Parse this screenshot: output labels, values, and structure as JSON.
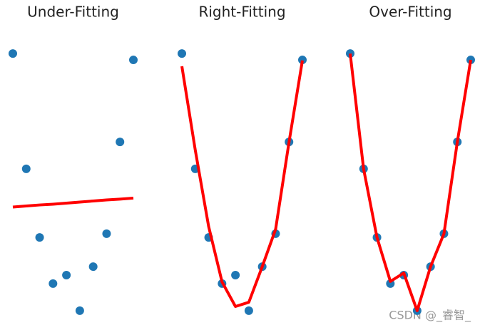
{
  "chart_data": [
    {
      "type": "scatter",
      "title": "Under-Fitting",
      "x": [
        0,
        1,
        2,
        3,
        4,
        5,
        6,
        7,
        8,
        9
      ],
      "values": [
        9.86,
        5.49,
        2.89,
        1.14,
        1.46,
        0.11,
        1.78,
        3.03,
        6.51,
        9.62
      ],
      "color": "#1f77b4",
      "fit": {
        "values": [
          4.04,
          4.08,
          4.12,
          4.15,
          4.19,
          4.23,
          4.27,
          4.31,
          4.34,
          4.38
        ],
        "color": "#ff0000"
      },
      "xlim": [
        0,
        9
      ],
      "ylim": [
        0,
        10
      ]
    },
    {
      "type": "scatter",
      "title": "Right-Fitting",
      "x": [
        0,
        1,
        2,
        3,
        4,
        5,
        6,
        7,
        8,
        9
      ],
      "values": [
        9.86,
        5.49,
        2.89,
        1.14,
        1.46,
        0.11,
        1.78,
        3.03,
        6.51,
        9.62
      ],
      "color": "#1f77b4",
      "fit": {
        "values": [
          9.38,
          6.2,
          3.3,
          1.2,
          0.27,
          0.43,
          1.78,
          3.2,
          6.5,
          9.6
        ],
        "color": "#ff0000"
      },
      "xlim": [
        0,
        9
      ],
      "ylim": [
        0,
        10
      ]
    },
    {
      "type": "scatter",
      "title": "Over-Fitting",
      "x": [
        0,
        1,
        2,
        3,
        4,
        5,
        6,
        7,
        8,
        9
      ],
      "values": [
        9.86,
        5.49,
        2.89,
        1.14,
        1.46,
        0.11,
        1.78,
        3.03,
        6.51,
        9.62
      ],
      "color": "#1f77b4",
      "fit": {
        "values": [
          9.86,
          5.49,
          2.89,
          1.22,
          1.54,
          0.11,
          1.78,
          3.03,
          6.51,
          9.62
        ],
        "color": "#ff0000"
      },
      "xlim": [
        0,
        9
      ],
      "ylim": [
        0,
        10
      ]
    }
  ],
  "watermark": "CSDN @_睿智_"
}
